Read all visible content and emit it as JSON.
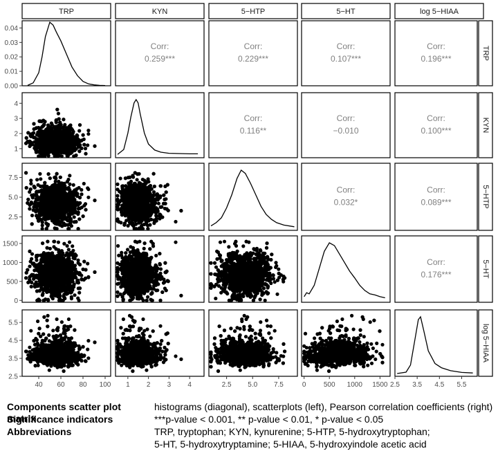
{
  "chart_data": {
    "type": "scatter-matrix",
    "variables": [
      "TRP",
      "KYN",
      "5−HTP",
      "5−HT",
      "log 5−HIAA"
    ],
    "corr_label": "Corr:",
    "correlations": [
      {
        "row": 0,
        "col": 1,
        "value": "0.259***"
      },
      {
        "row": 0,
        "col": 2,
        "value": "0.229***"
      },
      {
        "row": 0,
        "col": 3,
        "value": "0.107***"
      },
      {
        "row": 0,
        "col": 4,
        "value": "0.196***"
      },
      {
        "row": 1,
        "col": 2,
        "value": "0.116**"
      },
      {
        "row": 1,
        "col": 3,
        "value": "−0.010"
      },
      {
        "row": 1,
        "col": 4,
        "value": "0.100***"
      },
      {
        "row": 2,
        "col": 3,
        "value": "0.032*"
      },
      {
        "row": 2,
        "col": 4,
        "value": "0.089***"
      },
      {
        "row": 3,
        "col": 4,
        "value": "0.176***"
      }
    ],
    "axes": [
      {
        "name": "TRP",
        "range": [
          25,
          105
        ],
        "ticks": [
          40,
          60,
          80,
          100
        ],
        "tick_labels": [
          "40",
          "60",
          "80",
          "100"
        ],
        "mean": 55,
        "sd": 10
      },
      {
        "name": "KYN",
        "range": [
          0.4,
          4.7
        ],
        "ticks": [
          1,
          2,
          3,
          4
        ],
        "tick_labels": [
          "1",
          "2",
          "3",
          "4"
        ],
        "mean": 1.45,
        "sd": 0.4
      },
      {
        "name": "5−HTP",
        "range": [
          0.8,
          9.3
        ],
        "ticks": [
          2.5,
          5.0,
          7.5
        ],
        "tick_labels": [
          "2.5",
          "5.0",
          "7.5"
        ],
        "mean": 4.3,
        "sd": 1.3
      },
      {
        "name": "5−HT",
        "range": [
          -50,
          1700
        ],
        "ticks": [
          0,
          500,
          1000,
          1500
        ],
        "tick_labels": [
          "0",
          "500",
          "1000",
          "1500"
        ],
        "mean": 650,
        "sd": 280
      },
      {
        "name": "log 5−HIAA",
        "range": [
          2.5,
          6.2
        ],
        "ticks": [
          2.5,
          3.5,
          4.5,
          5.5
        ],
        "tick_labels": [
          "2.5",
          "3.5",
          "4.5",
          "5.5"
        ],
        "mean": 3.65,
        "sd": 0.4
      }
    ],
    "diag_density_axis": {
      "range": [
        0,
        0.045
      ],
      "ticks": [
        0,
        0.01,
        0.02,
        0.03,
        0.04
      ],
      "tick_labels": [
        "0.00",
        "0.01",
        "0.02",
        "0.03",
        "0.04"
      ]
    },
    "density_curves": [
      {
        "x": [
          30,
          35,
          40,
          43,
          46,
          50,
          53,
          56,
          60,
          65,
          70,
          75,
          80,
          85,
          90,
          95,
          100
        ],
        "y": [
          0.0003,
          0.002,
          0.009,
          0.02,
          0.034,
          0.044,
          0.042,
          0.037,
          0.031,
          0.022,
          0.013,
          0.007,
          0.003,
          0.0013,
          0.0006,
          0.0003,
          0.0002
        ]
      },
      {
        "x": [
          0.5,
          0.8,
          1.0,
          1.15,
          1.3,
          1.4,
          1.5,
          1.6,
          1.8,
          2.0,
          2.3,
          2.6,
          3.0,
          3.5,
          4.0,
          4.4
        ],
        "y": [
          0.02,
          0.2,
          0.8,
          1.4,
          1.9,
          2.02,
          1.9,
          1.5,
          0.8,
          0.4,
          0.18,
          0.1,
          0.06,
          0.05,
          0.04,
          0.04
        ]
      },
      {
        "x": [
          1.0,
          1.5,
          2.0,
          2.5,
          3.0,
          3.5,
          3.9,
          4.3,
          4.8,
          5.3,
          5.8,
          6.3,
          6.8,
          7.3,
          8.0,
          9.0
        ],
        "y": [
          0.01,
          0.03,
          0.06,
          0.12,
          0.2,
          0.3,
          0.35,
          0.33,
          0.27,
          0.2,
          0.13,
          0.08,
          0.05,
          0.03,
          0.015,
          0.005
        ]
      },
      {
        "x": [
          0,
          50,
          100,
          200,
          300,
          400,
          500,
          600,
          700,
          800,
          900,
          1000,
          1100,
          1200,
          1300,
          1400,
          1500,
          1600
        ],
        "y": [
          0.05,
          0.12,
          0.1,
          0.25,
          0.55,
          0.85,
          1.0,
          0.95,
          0.8,
          0.65,
          0.5,
          0.38,
          0.25,
          0.16,
          0.1,
          0.08,
          0.05,
          0.03
        ]
      },
      {
        "x": [
          2.6,
          3.0,
          3.2,
          3.4,
          3.55,
          3.65,
          3.8,
          4.0,
          4.3,
          4.6,
          5.0,
          5.5,
          6.0
        ],
        "y": [
          0.0,
          0.05,
          0.3,
          1.2,
          1.9,
          2.0,
          1.5,
          0.8,
          0.35,
          0.2,
          0.1,
          0.04,
          0.02
        ]
      }
    ],
    "n_points": 1500
  },
  "legend": {
    "rows": [
      {
        "key": "Components scatter plot matrix",
        "value": "histograms (diagonal), scatterplots (left), Pearson correlation coefficients (right)"
      },
      {
        "key": "Significance indicators",
        "value": "***p-value < 0.001, ** p-value < 0.01, * p-value < 0.05"
      },
      {
        "key": "Abbreviations",
        "value": "TRP, tryptophan; KYN, kynurenine; 5-HTP, 5-hydroxytryptophan;"
      },
      {
        "key": "",
        "value": "5-HT, 5-hydroxytryptamine; 5-HIAA, 5-hydroxyindole acetic acid"
      }
    ]
  }
}
